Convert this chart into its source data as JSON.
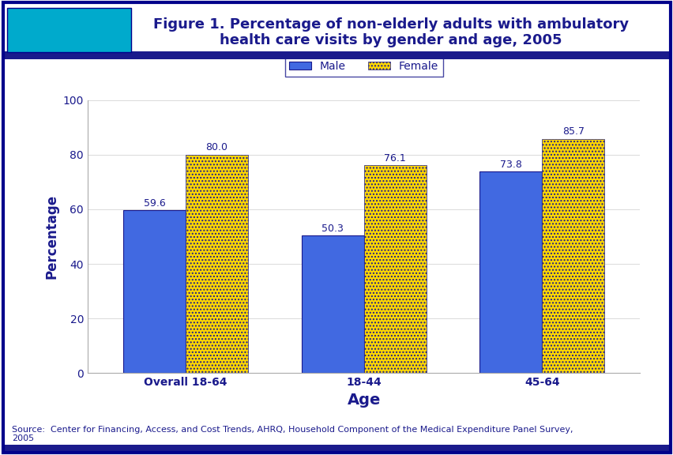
{
  "title_line1": "Figure 1. Percentage of non-elderly adults with ambulatory",
  "title_line2": "health care visits by gender and age, 2005",
  "categories": [
    "Overall 18-64",
    "18-44",
    "45-64"
  ],
  "male_values": [
    59.6,
    50.3,
    73.8
  ],
  "female_values": [
    80.0,
    76.1,
    85.7
  ],
  "male_color": "#4169E1",
  "female_color": "#FFD700",
  "ylabel": "Percentage",
  "xlabel": "Age",
  "ylim": [
    0,
    100
  ],
  "yticks": [
    0,
    20,
    40,
    60,
    80,
    100
  ],
  "legend_labels": [
    "Male",
    "Female"
  ],
  "source_text": "Source:  Center for Financing, Access, and Cost Trends, AHRQ, Household Component of the Medical Expenditure Panel Survey,\n2005",
  "title_color": "#1a1a8c",
  "axis_label_color": "#1a1a8c",
  "bar_border_color": "#1a1a8c",
  "background_color": "#ffffff",
  "outer_border_color": "#00008B",
  "header_bg_color": "#1a1a8c",
  "bar_width": 0.35,
  "annotation_fontsize": 9,
  "title_fontsize": 13,
  "axis_label_fontsize": 12,
  "tick_label_fontsize": 10,
  "source_fontsize": 8
}
